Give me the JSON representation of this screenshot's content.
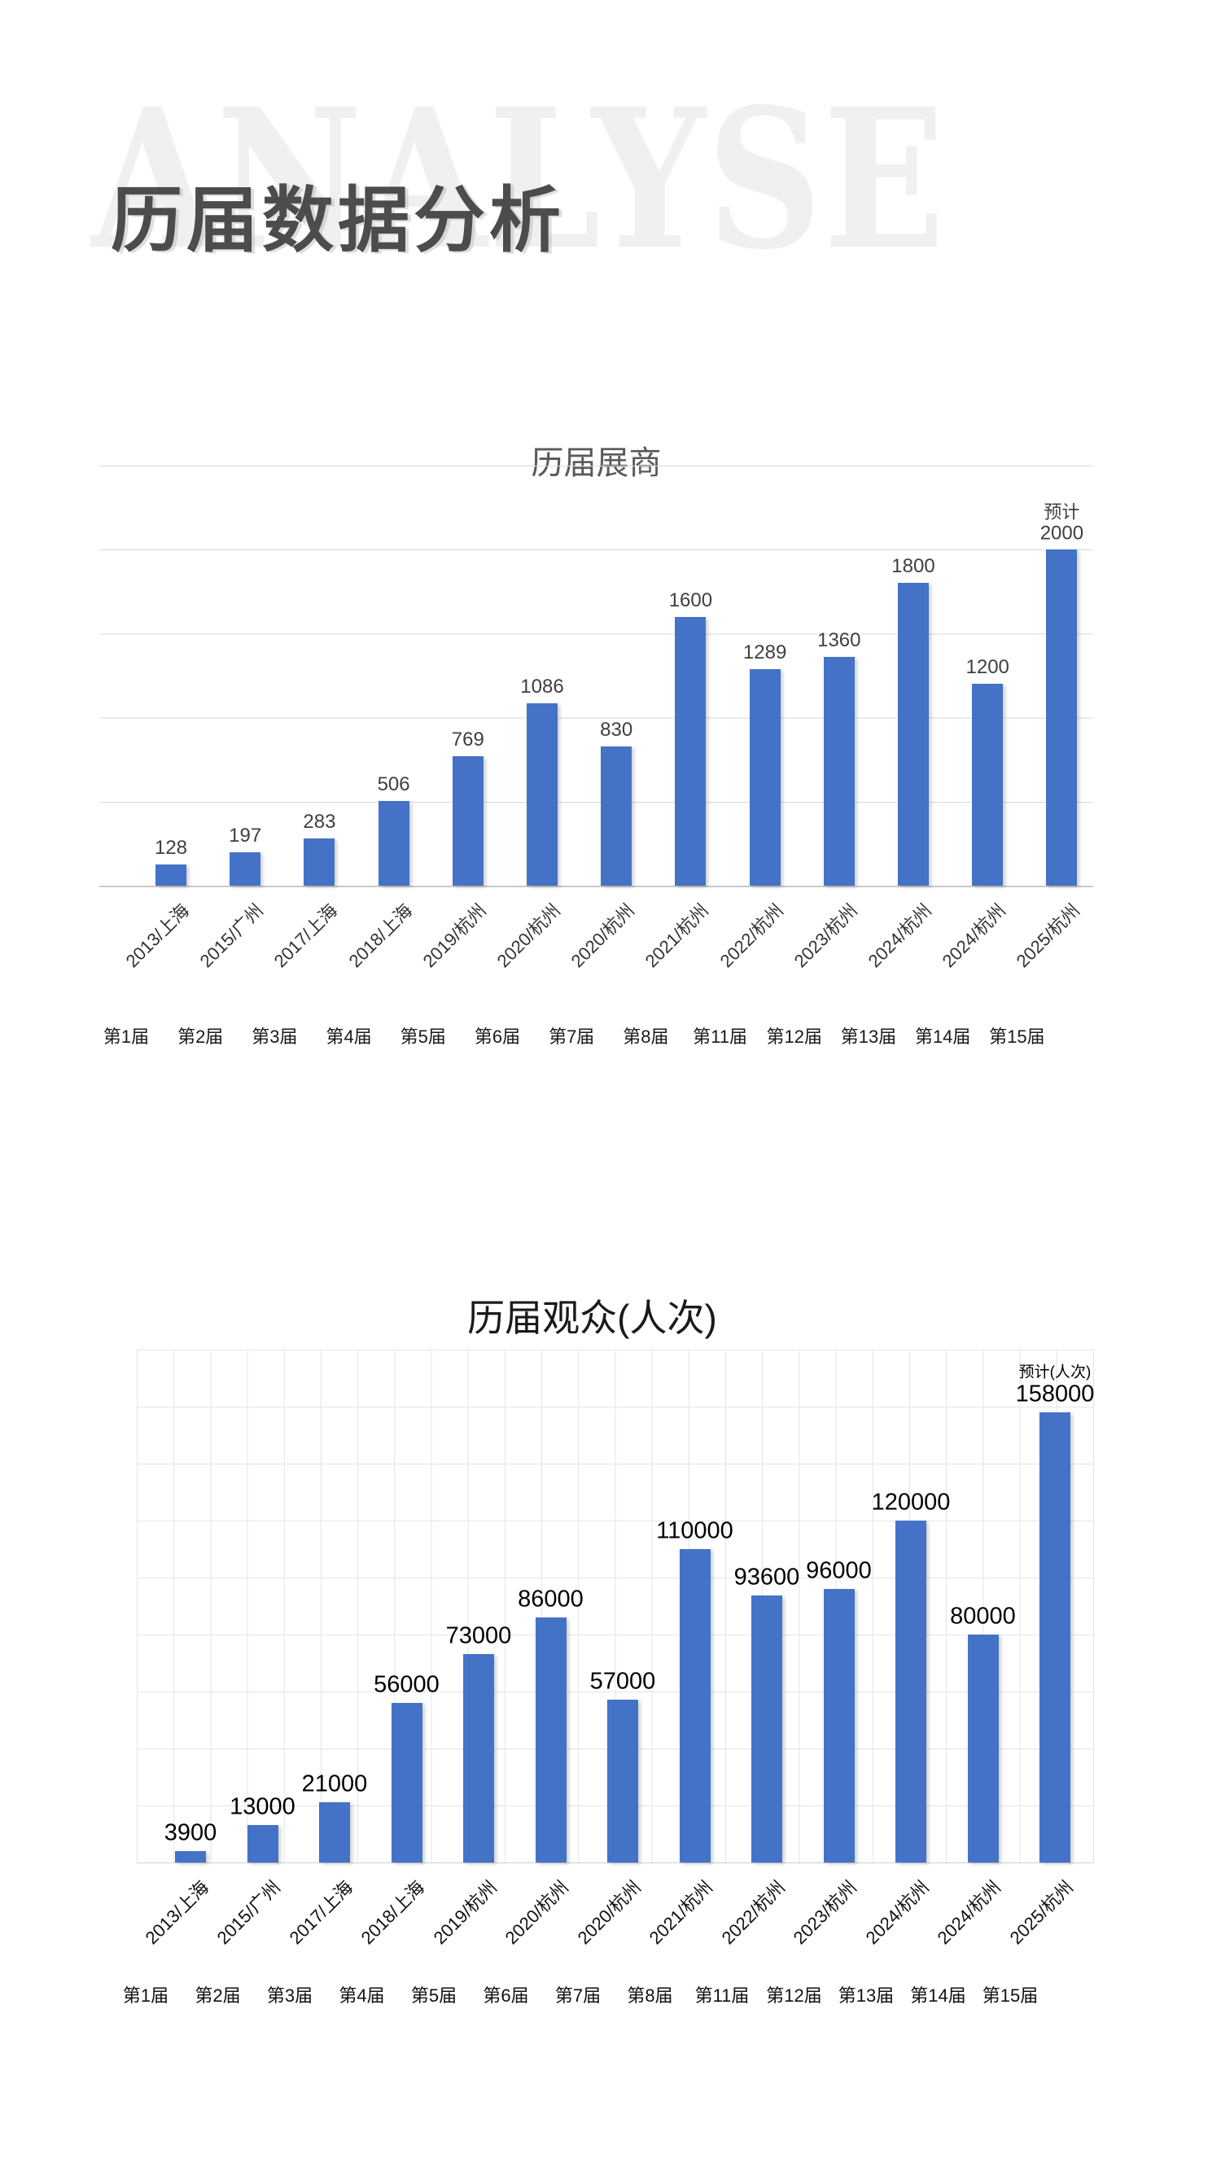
{
  "header": {
    "watermark": "ANALYSE",
    "heading": "历届数据分析"
  },
  "colors": {
    "bar": "#4472C7",
    "chart1_grid": "#D9D9D9",
    "chart2_grid": "#E4E4E4",
    "chart1_title": "#595959",
    "chart2_title": "#1A1A1A",
    "watermark": "#F0F0F0",
    "heading": "#4C4C4C"
  },
  "chart_data": [
    {
      "type": "bar",
      "title": "历届展商",
      "categories": [
        "2013/上海",
        "2015/广州",
        "2017/上海",
        "2018/上海",
        "2019/杭州",
        "2020/杭州",
        "2020/杭州",
        "2021/杭州",
        "2022/杭州",
        "2023/杭州",
        "2024/杭州",
        "2024/杭州",
        "2025/杭州"
      ],
      "category_row2": [
        "第1届",
        "第2届",
        "第3届",
        "第4届",
        "第5届",
        "第6届",
        "第7届",
        "第8届",
        "第11届",
        "第12届",
        "第13届",
        "第14届",
        "第15届"
      ],
      "values": [
        128,
        197,
        283,
        506,
        769,
        1086,
        830,
        1600,
        1289,
        1360,
        1800,
        1200,
        2000
      ],
      "data_labels": [
        "128",
        "197",
        "283",
        "506",
        "769",
        "1086",
        "830",
        "1600",
        "1289",
        "1360",
        "1800",
        "1200",
        "2000"
      ],
      "last_value_note": "预计",
      "xlabel": "",
      "ylabel": "",
      "ylim": [
        0,
        2500
      ],
      "grid_step": 500,
      "grid": "horizontal-only",
      "legend_position": "none",
      "bar_color": "#4472C7"
    },
    {
      "type": "bar",
      "title": "历届观众(人次)",
      "categories": [
        "2013/上海",
        "2015/广州",
        "2017/上海",
        "2018/上海",
        "2019/杭州",
        "2020/杭州",
        "2020/杭州",
        "2021/杭州",
        "2022/杭州",
        "2023/杭州",
        "2024/杭州",
        "2024/杭州",
        "2025/杭州"
      ],
      "category_row2": [
        "第1届",
        "第2届",
        "第3届",
        "第4届",
        "第5届",
        "第6届",
        "第7届",
        "第8届",
        "第11届",
        "第12届",
        "第13届",
        "第14届",
        "第15届"
      ],
      "values": [
        3900,
        13000,
        21000,
        56000,
        73000,
        86000,
        57000,
        110000,
        93600,
        96000,
        120000,
        80000,
        158000
      ],
      "data_labels": [
        "3900",
        "13000",
        "21000",
        "56000",
        "73000",
        "86000",
        "57000",
        "110000",
        "93600",
        "96000",
        "120000",
        "80000",
        "158000"
      ],
      "last_value_note": "预计(人次)",
      "xlabel": "",
      "ylabel": "",
      "ylim": [
        0,
        180000
      ],
      "grid_step": 20000,
      "grid": "full",
      "legend_position": "none",
      "bar_color": "#4472C7"
    }
  ]
}
